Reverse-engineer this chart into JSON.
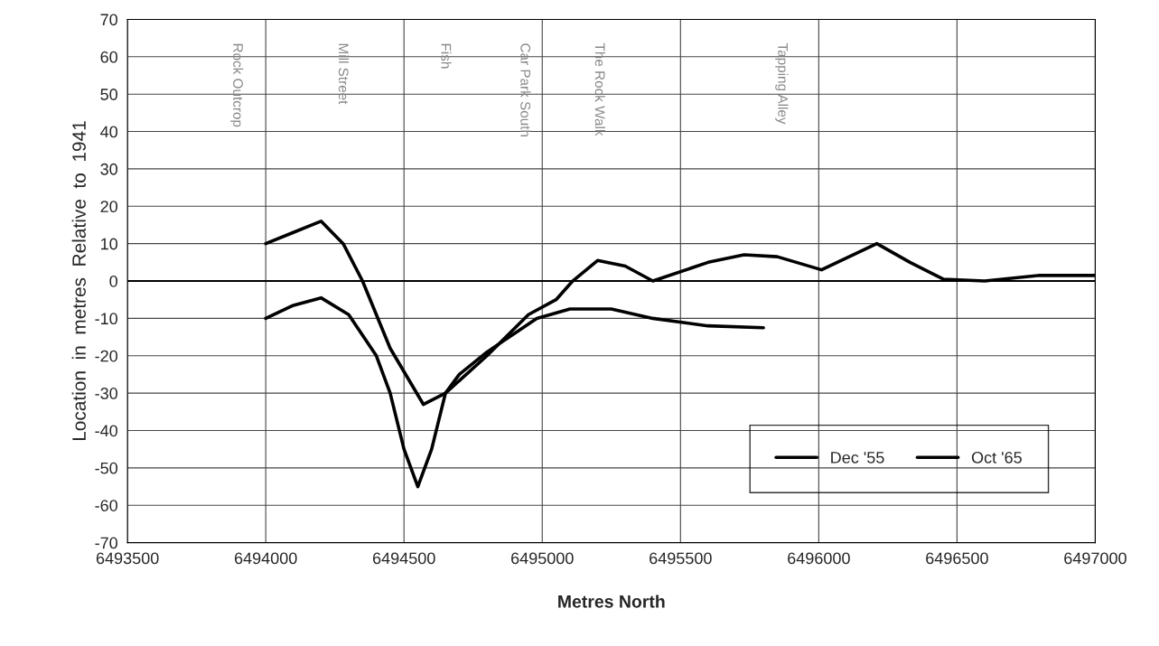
{
  "chart_data": {
    "type": "line",
    "xlabel": "Metres North",
    "ylabel": "Location  in  metres  Relative  to  1941",
    "xlim": [
      6493500,
      6497000
    ],
    "xticks": [
      6493500,
      6494000,
      6494500,
      6495000,
      6495500,
      6496000,
      6496500,
      6497000
    ],
    "ylim": [
      -70,
      70
    ],
    "yticks": [
      -70,
      -60,
      -50,
      -40,
      -30,
      -20,
      -10,
      0,
      10,
      20,
      30,
      40,
      50,
      60,
      70
    ],
    "grid": true,
    "legend": "bottom right",
    "line_style": "solid",
    "marker": "none",
    "series": [
      {
        "name": "Dec '55",
        "color": "#000000",
        "x": [
          6494000,
          6494100,
          6494200,
          6494300,
          6494400,
          6494450,
          6494500,
          6494550,
          6494600,
          6494650,
          6494700,
          6494800,
          6494900,
          6494980,
          6495100,
          6495250,
          6495400,
          6495600,
          6495800
        ],
        "values": [
          -10,
          -6.5,
          -4.5,
          -9,
          -20,
          -30,
          -45,
          -55,
          -45,
          -30,
          -25,
          -19,
          -14,
          -10,
          -7.5,
          -7.5,
          -10,
          -12,
          -12.5
        ]
      },
      {
        "name": "Oct '65",
        "color": "#000000",
        "x": [
          6494000,
          6494100,
          6494200,
          6494280,
          6494350,
          6494450,
          6494570,
          6494650,
          6494800,
          6494950,
          6495050,
          6495110,
          6495200,
          6495300,
          6495400,
          6495600,
          6495730,
          6495850,
          6496010,
          6496210,
          6496330,
          6496450,
          6496600,
          6496800,
          6497000
        ],
        "values": [
          10,
          13,
          16,
          10,
          0,
          -18,
          -33,
          -30,
          -20,
          -9,
          -5,
          0,
          5.5,
          4,
          0,
          5,
          7,
          6.5,
          3,
          10,
          5,
          0.5,
          0,
          1.5,
          1.5
        ]
      }
    ],
    "annotations": [
      "Rock Outcrop",
      "Mill Street",
      "Fish",
      "Car Park South",
      "The Rock Walk",
      "Tapping Alley"
    ]
  }
}
